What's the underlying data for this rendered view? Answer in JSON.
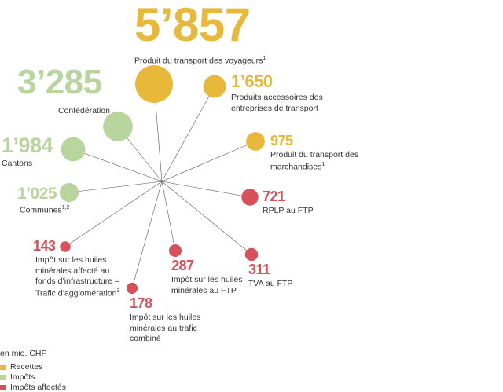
{
  "chart_data": {
    "type": "bubble",
    "unit": "en mio. CHF",
    "colors": {
      "recettes": "#e8b83a",
      "impots": "#b9d59e",
      "impots_affectes": "#d8505a",
      "lines": "#555555"
    },
    "items": [
      {
        "value": "5’857",
        "amount": 5857,
        "category": "recettes",
        "label": "Produit du transport des voyageurs",
        "sup": "1"
      },
      {
        "value": "1’650",
        "amount": 1650,
        "category": "recettes",
        "label": "Produits accessoires des entreprises de transport",
        "sup": ""
      },
      {
        "value": "975",
        "amount": 975,
        "category": "recettes",
        "label": "Produit du transport des marchandises",
        "sup": "1"
      },
      {
        "value": "721",
        "amount": 721,
        "category": "impots_affectes",
        "label": "RPLP au FTP",
        "sup": ""
      },
      {
        "value": "311",
        "amount": 311,
        "category": "impots_affectes",
        "label": "TVA au FTP",
        "sup": ""
      },
      {
        "value": "287",
        "amount": 287,
        "category": "impots_affectes",
        "label": "Impôt sur les huiles minérales au FTP",
        "sup": ""
      },
      {
        "value": "178",
        "amount": 178,
        "category": "impots_affectes",
        "label": "Impôt sur les huiles minérales au trafic combiné",
        "sup": ""
      },
      {
        "value": "143",
        "amount": 143,
        "category": "impots_affectes",
        "label": "Impôt sur les huiles minérales affecté au fonds d’infrastructure – Trafic d’agglomération",
        "sup": "3"
      },
      {
        "value": "1’025",
        "amount": 1025,
        "category": "impots",
        "label": "Communes",
        "sup": "1,2"
      },
      {
        "value": "1’984",
        "amount": 1984,
        "category": "impots",
        "label": "Cantons",
        "sup": ""
      },
      {
        "value": "3’285",
        "amount": 3285,
        "category": "impots",
        "label": "Confédération",
        "sup": ""
      }
    ],
    "legend": [
      {
        "key": "recettes",
        "label": "Recettes"
      },
      {
        "key": "impots",
        "label": "Impôts"
      },
      {
        "key": "impots_affectes",
        "label": "Impôts affectés"
      }
    ]
  }
}
